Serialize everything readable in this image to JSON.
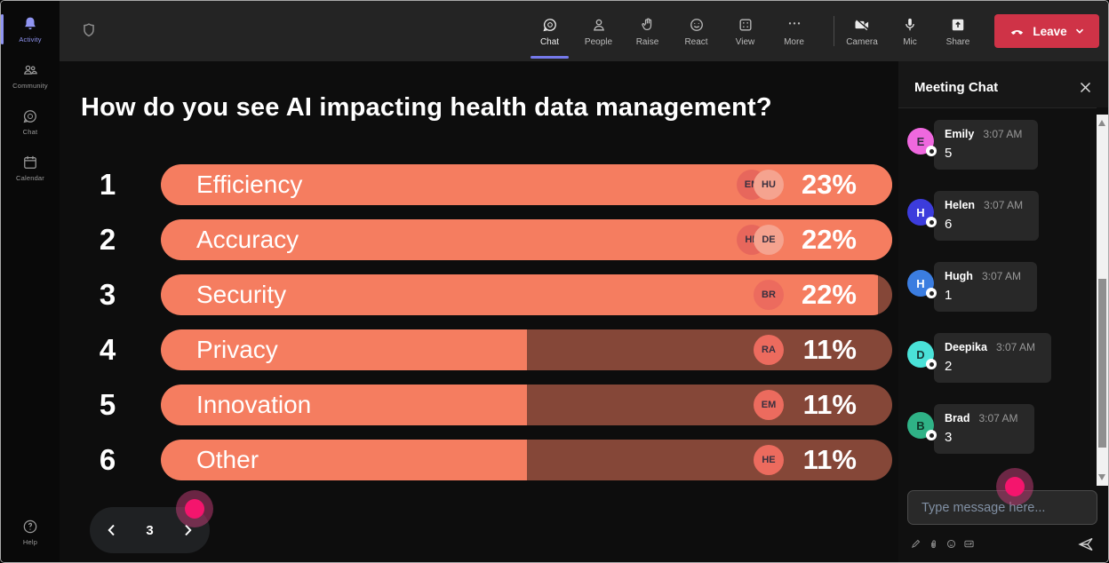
{
  "rail": {
    "items": [
      {
        "label": "Activity",
        "active": true
      },
      {
        "label": "Community",
        "active": false
      },
      {
        "label": "Chat",
        "active": false
      },
      {
        "label": "Calendar",
        "active": false
      }
    ],
    "help_label": "Help",
    "accent_color": "#9095f2"
  },
  "topbar": {
    "tabs": [
      {
        "label": "Chat",
        "active": true
      },
      {
        "label": "People",
        "active": false
      },
      {
        "label": "Raise",
        "active": false
      },
      {
        "label": "React",
        "active": false
      },
      {
        "label": "View",
        "active": false
      },
      {
        "label": "More",
        "active": false
      }
    ],
    "active_tab_underline_color": "#7579eb",
    "device_controls": [
      {
        "label": "Camera"
      },
      {
        "label": "Mic"
      },
      {
        "label": "Share"
      }
    ],
    "leave": {
      "label": "Leave",
      "color": "#cf3347"
    }
  },
  "poll": {
    "question": "How do you see AI impacting health data management?",
    "bar_color": "#f57d60",
    "bar_track_color": "#854738",
    "options": [
      {
        "rank": "1",
        "label": "Efficiency",
        "percent": "23%",
        "fill_pct": 100,
        "avatars": [
          {
            "initials": "EM",
            "bg": "#e7675c",
            "fg": "#38303f"
          },
          {
            "initials": "HU",
            "bg": "#f5a38f",
            "fg": "#38303f"
          }
        ]
      },
      {
        "rank": "2",
        "label": "Accuracy",
        "percent": "22%",
        "fill_pct": 100,
        "avatars": [
          {
            "initials": "HE",
            "bg": "#e7675c",
            "fg": "#38303f"
          },
          {
            "initials": "DE",
            "bg": "#f5a38f",
            "fg": "#38303f"
          }
        ]
      },
      {
        "rank": "3",
        "label": "Security",
        "percent": "22%",
        "fill_pct": 98,
        "avatars": [
          {
            "initials": "BR",
            "bg": "#ec6b5e",
            "fg": "#38303f"
          }
        ]
      },
      {
        "rank": "4",
        "label": "Privacy",
        "percent": "11%",
        "fill_pct": 50,
        "avatars": [
          {
            "initials": "RA",
            "bg": "#ec6b5e",
            "fg": "#38303f"
          }
        ]
      },
      {
        "rank": "5",
        "label": "Innovation",
        "percent": "11%",
        "fill_pct": 50,
        "avatars": [
          {
            "initials": "EM",
            "bg": "#ec6b5e",
            "fg": "#38303f"
          }
        ]
      },
      {
        "rank": "6",
        "label": "Other",
        "percent": "11%",
        "fill_pct": 50,
        "avatars": [
          {
            "initials": "HE",
            "bg": "#ec6b5e",
            "fg": "#38303f"
          }
        ]
      }
    ]
  },
  "pagination": {
    "current_page": "3"
  },
  "chat_panel": {
    "title": "Meeting Chat",
    "messages": [
      {
        "initial": "E",
        "name": "Emily",
        "time": "3:07 AM",
        "text": "5",
        "avatar_bg": "#ef68de",
        "avatar_fg": "#352b42"
      },
      {
        "initial": "H",
        "name": "Helen",
        "time": "3:07 AM",
        "text": "6",
        "avatar_bg": "#3c3cdc",
        "avatar_fg": "#ffffff"
      },
      {
        "initial": "H",
        "name": "Hugh",
        "time": "3:07 AM",
        "text": "1",
        "avatar_bg": "#3b7de0",
        "avatar_fg": "#ffffff"
      },
      {
        "initial": "D",
        "name": "Deepika",
        "time": "3:07 AM",
        "text": "2",
        "avatar_bg": "#4ae2d8",
        "avatar_fg": "#173a38"
      },
      {
        "initial": "B",
        "name": "Brad",
        "time": "3:07 AM",
        "text": "3",
        "avatar_bg": "#2fb286",
        "avatar_fg": "#0f3527"
      }
    ],
    "input_placeholder": "Type message here..."
  }
}
